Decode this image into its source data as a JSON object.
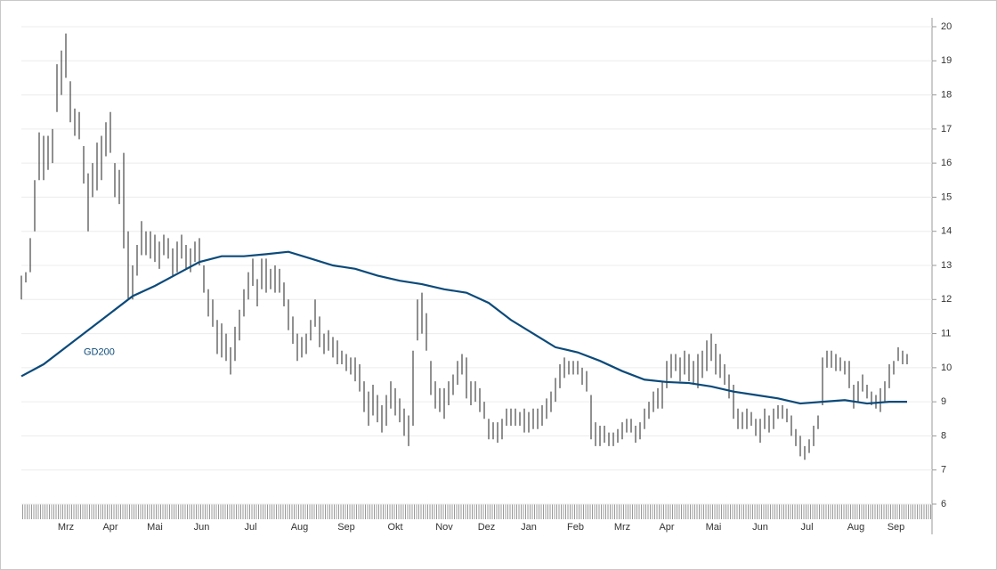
{
  "chart_data": {
    "type": "high-low",
    "color": "#222222",
    "x": [
      0,
      2,
      4,
      6,
      8,
      10,
      12,
      14,
      16,
      18,
      20,
      22,
      24,
      26,
      28,
      30,
      32,
      34,
      36,
      38,
      40,
      42,
      44,
      46,
      48,
      50,
      52,
      54,
      56,
      58,
      60,
      62,
      64,
      66,
      68,
      70,
      72,
      74,
      76,
      78,
      80,
      82,
      84,
      86,
      88,
      90,
      92,
      94,
      96,
      98,
      100,
      102,
      104,
      106,
      108,
      110,
      112,
      114,
      116,
      118,
      120,
      122,
      124,
      126,
      128,
      130,
      132,
      134,
      136,
      138,
      140,
      142,
      144,
      146,
      148,
      150,
      152,
      154,
      156,
      158,
      160,
      162,
      164,
      166,
      168,
      170,
      172,
      174,
      176,
      178,
      180,
      182,
      184,
      186,
      188,
      190,
      192,
      194,
      196,
      198,
      200,
      202,
      204,
      206,
      208,
      210,
      212,
      214,
      216,
      218,
      220,
      222,
      224,
      226,
      228,
      230,
      232,
      234,
      236,
      238,
      240,
      242,
      244,
      246,
      248,
      250,
      252,
      254,
      256,
      258,
      260,
      262,
      264,
      266,
      268,
      270,
      272,
      274,
      276,
      278,
      280,
      282,
      284,
      286,
      288,
      290,
      292,
      294,
      296,
      298,
      300,
      302,
      304,
      306,
      308,
      310,
      312,
      314,
      316,
      318,
      320,
      322,
      324,
      326,
      328,
      330,
      332,
      334,
      336,
      338,
      340,
      342,
      344,
      346,
      348,
      350,
      352,
      354,
      356,
      358,
      360,
      362,
      364,
      366,
      368,
      370,
      372,
      374,
      376,
      378,
      380,
      382,
      384,
      386,
      388,
      390,
      392,
      394,
      396,
      398
    ],
    "high": [
      12.7,
      12.8,
      13.8,
      15.5,
      16.9,
      16.8,
      16.8,
      17,
      18.9,
      19.3,
      19.8,
      18.4,
      17.6,
      17.5,
      16.5,
      15.7,
      16,
      16.6,
      16.8,
      17.2,
      17.5,
      16,
      15.8,
      16.3,
      14,
      13,
      13.6,
      14.3,
      14,
      14,
      13.9,
      13.7,
      13.9,
      13.8,
      13.5,
      13.7,
      13.9,
      13.6,
      13.5,
      13.7,
      13.8,
      13,
      12.3,
      12,
      11.4,
      11.3,
      11,
      10.6,
      11.2,
      11.7,
      12.3,
      12.8,
      13.2,
      12.6,
      13.2,
      13.2,
      12.9,
      13,
      12.9,
      12.5,
      12,
      11.5,
      11,
      10.9,
      11,
      11.4,
      12,
      11.5,
      11,
      11.1,
      10.9,
      10.8,
      10.5,
      10.4,
      10.3,
      10.3,
      10.1,
      9.6,
      9.3,
      9.5,
      9.2,
      8.9,
      9.2,
      9.6,
      9.4,
      9.1,
      8.8,
      8.6,
      10.5,
      12,
      12.2,
      11.6,
      10.2,
      9.6,
      9.4,
      9.4,
      9.6,
      9.8,
      10.2,
      10.4,
      10.3,
      9.6,
      9.6,
      9.4,
      9,
      8.5,
      8.4,
      8.4,
      8.5,
      8.8,
      8.8,
      8.8,
      8.7,
      8.8,
      8.7,
      8.8,
      8.8,
      8.9,
      9.1,
      9.3,
      9.7,
      10.1,
      10.3,
      10.2,
      10.2,
      10.2,
      10,
      9.9,
      9.2,
      8.4,
      8.3,
      8.3,
      8.1,
      8.1,
      8.2,
      8.4,
      8.5,
      8.5,
      8.3,
      8.4,
      8.8,
      9,
      9.3,
      9.4,
      9.6,
      10.2,
      10.4,
      10.4,
      10.3,
      10.5,
      10.4,
      10.2,
      10.4,
      10.5,
      10.8,
      11,
      10.7,
      10.4,
      10.1,
      9.8,
      9.5,
      8.8,
      8.7,
      8.8,
      8.7,
      8.5,
      8.5,
      8.8,
      8.6,
      8.8,
      8.9,
      8.9,
      8.8,
      8.6,
      8.2,
      8,
      7.7,
      7.9,
      8.3,
      8.6,
      10.3,
      10.5,
      10.5,
      10.4,
      10.3,
      10.2,
      10.2,
      9.5,
      9.6,
      9.8,
      9.5,
      9.3,
      9.2,
      9.4,
      9.6,
      10.1,
      10.2,
      10.6,
      10.5,
      10.4
    ],
    "low": [
      12,
      12.5,
      12.8,
      14,
      15.5,
      15.5,
      15.8,
      16,
      17.5,
      18,
      18.5,
      17.2,
      16.8,
      16.7,
      15.4,
      14,
      15,
      15.2,
      15.5,
      16.2,
      16.3,
      15,
      14.8,
      13.5,
      12,
      12,
      12.7,
      13.3,
      13.3,
      13.2,
      13.1,
      12.9,
      13.3,
      13.2,
      12.7,
      12.8,
      13.2,
      12.9,
      12.8,
      13.1,
      13,
      12.2,
      11.5,
      11.2,
      10.4,
      10.3,
      10.2,
      9.8,
      10.2,
      10.8,
      11.5,
      12,
      12.4,
      11.8,
      12.3,
      12.2,
      12.3,
      12.2,
      12.2,
      11.8,
      11.1,
      10.7,
      10.2,
      10.3,
      10.4,
      10.8,
      11.2,
      10.6,
      10.4,
      10.5,
      10.3,
      10.1,
      10.1,
      9.9,
      9.8,
      9.6,
      9.3,
      8.7,
      8.3,
      8.6,
      8.4,
      8.1,
      8.3,
      8.8,
      8.6,
      8.4,
      8,
      7.7,
      8.3,
      10.8,
      11,
      10.5,
      9.2,
      8.8,
      8.7,
      8.5,
      8.9,
      9.2,
      9.5,
      9.8,
      9.1,
      8.9,
      9,
      8.7,
      8.5,
      7.9,
      7.9,
      7.8,
      7.9,
      8.3,
      8.3,
      8.3,
      8.3,
      8.1,
      8.1,
      8.2,
      8.2,
      8.3,
      8.5,
      8.7,
      9,
      9.4,
      9.7,
      9.8,
      9.8,
      9.8,
      9.5,
      9.3,
      7.9,
      7.7,
      7.7,
      7.8,
      7.7,
      7.7,
      7.8,
      7.9,
      8.1,
      8.1,
      7.8,
      7.9,
      8.2,
      8.5,
      8.7,
      8.8,
      8.8,
      9.4,
      9.7,
      9.9,
      9.6,
      9.8,
      9.6,
      9.5,
      9.4,
      9.7,
      9.9,
      10.2,
      9.8,
      9.7,
      9.5,
      9.1,
      8.5,
      8.2,
      8.2,
      8.2,
      8.3,
      8,
      7.8,
      8.2,
      8.1,
      8.2,
      8.5,
      8.5,
      8.4,
      8,
      7.7,
      7.4,
      7.3,
      7.5,
      7.7,
      8.2,
      8.9,
      10,
      10,
      9.9,
      9.9,
      9.8,
      9.4,
      8.8,
      9,
      9.3,
      9.1,
      8.9,
      8.8,
      8.7,
      9,
      9.4,
      9.8,
      10.2,
      10.1,
      10.1
    ],
    "overlay": {
      "type": "line",
      "name": "GD200",
      "color": "#0b4a7a",
      "x": [
        0,
        10,
        20,
        30,
        40,
        50,
        60,
        70,
        80,
        90,
        100,
        110,
        120,
        130,
        140,
        150,
        160,
        170,
        180,
        190,
        200,
        210,
        220,
        230,
        240,
        250,
        260,
        270,
        280,
        290,
        300,
        310,
        320,
        330,
        340,
        350,
        360,
        370,
        380,
        390,
        398
      ],
      "values": [
        9.75,
        10.1,
        10.6,
        11.1,
        11.6,
        12.1,
        12.4,
        12.75,
        13.1,
        13.27,
        13.27,
        13.33,
        13.4,
        13.2,
        13,
        12.9,
        12.7,
        12.55,
        12.45,
        12.3,
        12.2,
        11.9,
        11.4,
        11,
        10.6,
        10.45,
        10.2,
        9.9,
        9.65,
        9.58,
        9.55,
        9.45,
        9.3,
        9.2,
        9.1,
        8.95,
        9,
        9.05,
        8.95,
        9,
        9
      ]
    },
    "xlim": [
      0,
      409
    ],
    "xticks": [
      {
        "value": 20,
        "label": "Mrz"
      },
      {
        "value": 40,
        "label": "Apr"
      },
      {
        "value": 60,
        "label": "Mai"
      },
      {
        "value": 81,
        "label": "Jun"
      },
      {
        "value": 103,
        "label": "Jul"
      },
      {
        "value": 125,
        "label": "Aug"
      },
      {
        "value": 146,
        "label": "Sep"
      },
      {
        "value": 168,
        "label": "Okt"
      },
      {
        "value": 190,
        "label": "Nov"
      },
      {
        "value": 209,
        "label": "Dez"
      },
      {
        "value": 228,
        "label": "Jan"
      },
      {
        "value": 249,
        "label": "Feb"
      },
      {
        "value": 270,
        "label": "Mrz"
      },
      {
        "value": 290,
        "label": "Apr"
      },
      {
        "value": 311,
        "label": "Mai"
      },
      {
        "value": 332,
        "label": "Jun"
      },
      {
        "value": 353,
        "label": "Jul"
      },
      {
        "value": 375,
        "label": "Aug"
      },
      {
        "value": 393,
        "label": "Sep"
      }
    ],
    "ylim": [
      6,
      20
    ],
    "yticks": [
      6,
      7,
      8,
      9,
      10,
      11,
      12,
      13,
      14,
      15,
      16,
      17,
      18,
      19,
      20
    ],
    "grid": true
  }
}
